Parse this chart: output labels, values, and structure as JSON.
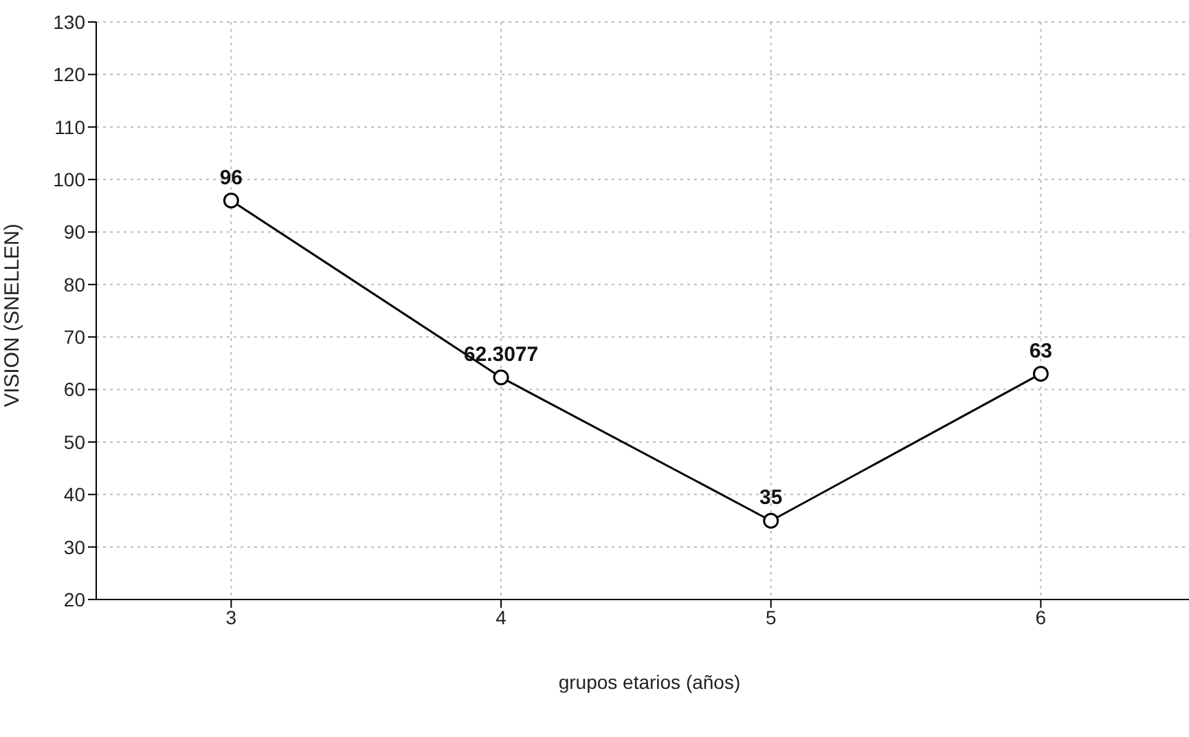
{
  "chart_data": {
    "type": "line",
    "xlabel": "grupos etarios (años)",
    "ylabel": "VISION (SNELLEN)",
    "x": [
      3,
      4,
      5,
      6
    ],
    "series": [
      {
        "color": "#000000",
        "values": [
          96,
          62.3077,
          35,
          63
        ]
      }
    ],
    "xlim": [
      2.5,
      6.6
    ],
    "xticks": [
      3,
      4,
      5,
      6
    ],
    "ylim": [
      20,
      130
    ],
    "yticks": [
      20,
      30,
      40,
      50,
      60,
      70,
      80,
      90,
      100,
      110,
      120,
      130
    ],
    "grid": true,
    "marker": "circle",
    "line_style": "solid",
    "data_labels": true
  }
}
